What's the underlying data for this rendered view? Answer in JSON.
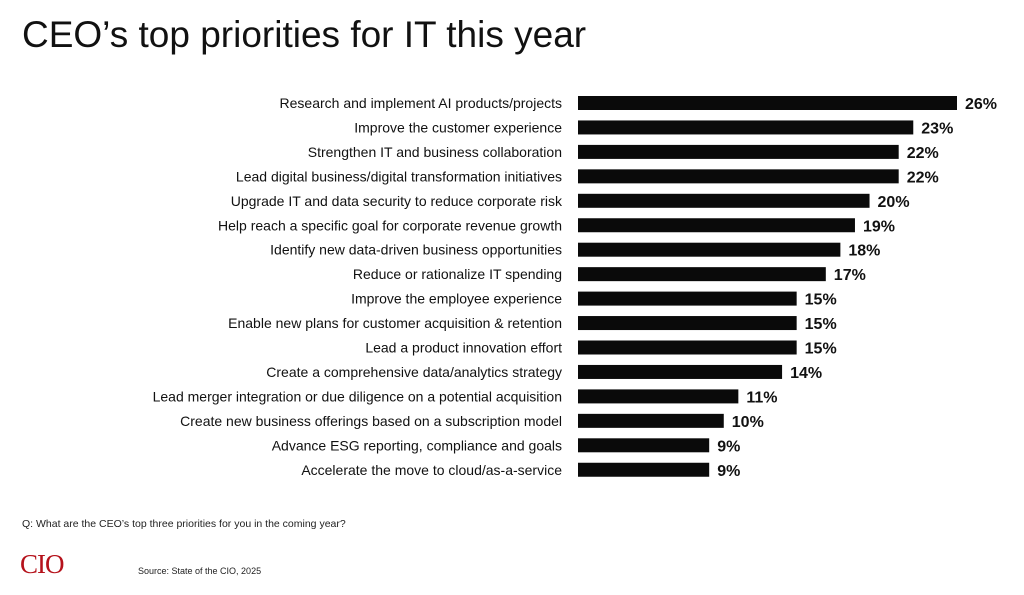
{
  "title": "CEO’s top priorities for IT this year",
  "question": "Q: What are the CEO’s top three priorities for you in the coming year?",
  "logo": "CIO",
  "source": "Source: State of the CIO, 2025",
  "colors": {
    "bar": "#0a0a0a",
    "logo": "#b5121b"
  },
  "chart_data": {
    "type": "bar",
    "orientation": "horizontal",
    "categories": [
      "Research and implement AI products/projects",
      "Improve the customer experience",
      "Strengthen IT and business collaboration",
      "Lead digital business/digital transformation initiatives",
      "Upgrade IT and data security to reduce corporate risk",
      "Help reach a specific goal for corporate revenue growth",
      "Identify new data-driven business opportunities",
      "Reduce or rationalize IT spending",
      "Improve the employee experience",
      "Enable new plans for customer acquisition & retention",
      "Lead a product innovation effort",
      "Create a comprehensive data/analytics strategy",
      "Lead merger integration or due diligence on a potential acquisition",
      "Create new business offerings based on a subscription model",
      "Advance ESG reporting, compliance and goals",
      "Accelerate the move to cloud/as-a-service"
    ],
    "values": [
      26,
      23,
      22,
      22,
      20,
      19,
      18,
      17,
      15,
      15,
      15,
      14,
      11,
      10,
      9,
      9
    ],
    "value_labels": [
      "26%",
      "23%",
      "22%",
      "22%",
      "20%",
      "19%",
      "18%",
      "17%",
      "15%",
      "15%",
      "15%",
      "14%",
      "11%",
      "10%",
      "9%",
      "9%"
    ],
    "xlim": [
      0,
      26
    ],
    "grid": false,
    "legend": "none"
  }
}
